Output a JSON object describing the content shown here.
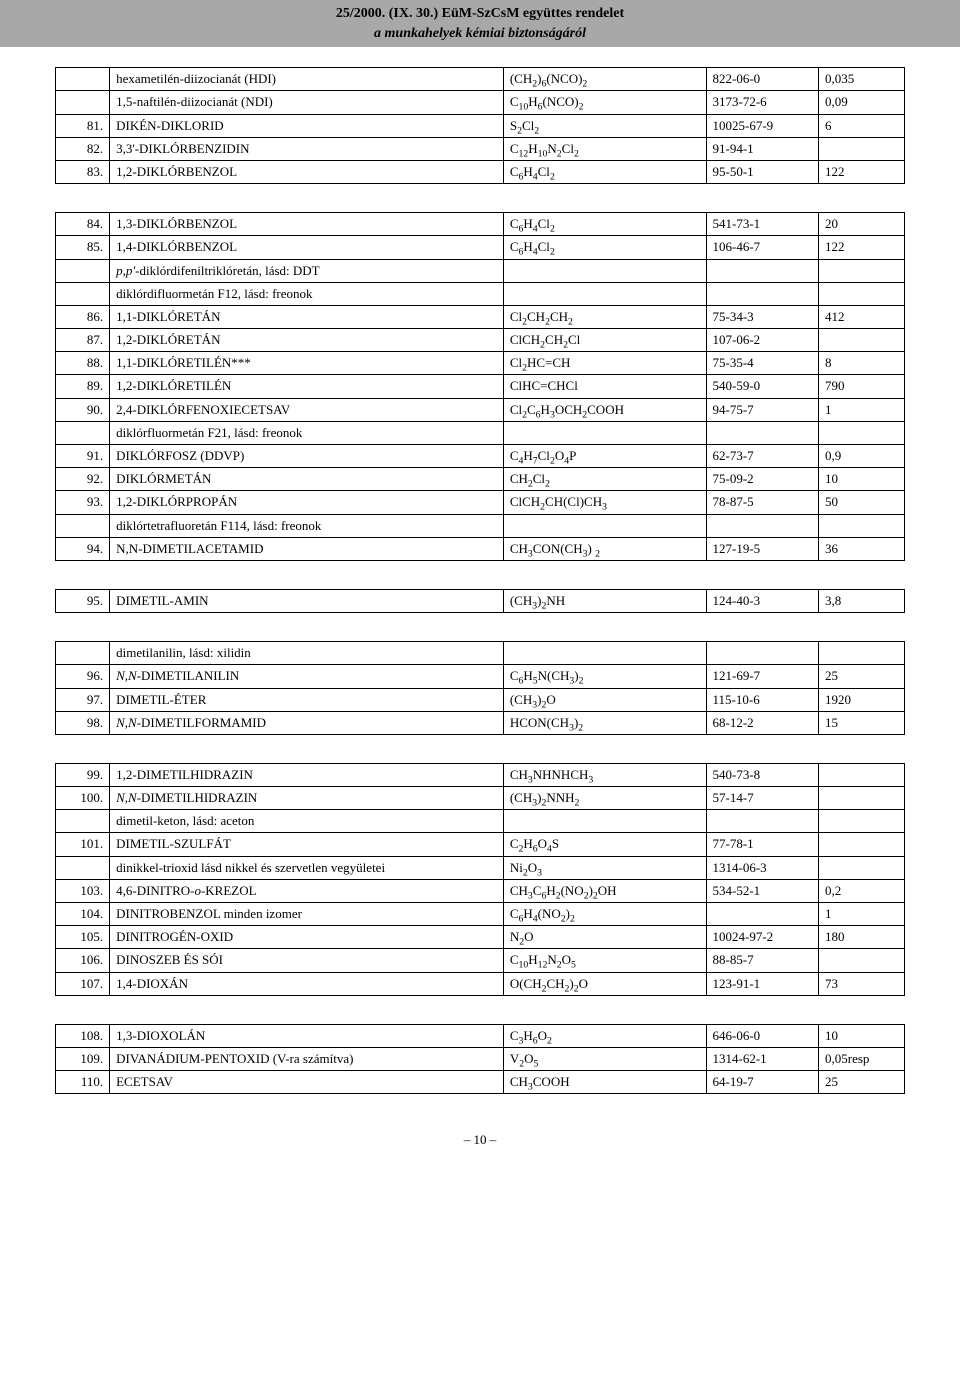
{
  "header": {
    "title_line1": "25/2000. (IX. 30.) EüM-SzCsM együttes rendelet",
    "title_line2": "a munkahelyek kémiai biztonságáról",
    "bg_color": "#a8a8a8",
    "text_color": "#000000"
  },
  "footer": {
    "page": "– 10 –"
  },
  "rows_group1": [
    {
      "num": "",
      "name": "hexametilén-diizocianát (HDI)",
      "formula": "(CH₂)₆(NCO)₂",
      "cas": "822-06-0",
      "val": "0,035"
    },
    {
      "num": "",
      "name": "1,5-naftilén-diizocianát (NDI)",
      "formula": "C₁₀H₆(NCO)₂",
      "cas": "3173-72-6",
      "val": "0,09"
    },
    {
      "num": "81.",
      "name": "DIKÉN-DIKLORID",
      "formula": "S₂Cl₂",
      "cas": "10025-67-9",
      "val": "6"
    },
    {
      "num": "82.",
      "name": "3,3'-DIKLÓRBENZIDIN",
      "formula": "C₁₂H₁₀N₂Cl₂",
      "cas": "91-94-1",
      "val": ""
    },
    {
      "num": "83.",
      "name": "1,2-DIKLÓRBENZOL",
      "formula": "C₆H₄Cl₂",
      "cas": "95-50-1",
      "val": "122"
    }
  ],
  "rows_group2": [
    {
      "num": "84.",
      "name": "1,3-DIKLÓRBENZOL",
      "formula": "C₆H₄Cl₂",
      "cas": "541-73-1",
      "val": "20"
    },
    {
      "num": "85.",
      "name": "1,4-DIKLÓRBENZOL",
      "formula": "C₆H₄Cl₂",
      "cas": "106-46-7",
      "val": "122"
    },
    {
      "num": "",
      "name_italic_prefix": "p,p'",
      "name_rest": "-diklórdifeniltriklóretán, lásd: DDT",
      "formula": "",
      "cas": "",
      "val": ""
    },
    {
      "num": "",
      "name": "diklórdifluormetán F12, lásd: freonok",
      "formula": "",
      "cas": "",
      "val": ""
    },
    {
      "num": "86.",
      "name": "1,1-DIKLÓRETÁN",
      "formula": "Cl₂CH₂CH₂",
      "cas": "75-34-3",
      "val": "412"
    },
    {
      "num": "87.",
      "name": "1,2-DIKLÓRETÁN",
      "formula": "ClCH₂CH₂Cl",
      "cas": "107-06-2",
      "val": ""
    },
    {
      "num": "88.",
      "name": "1,1-DIKLÓRETILÉN***",
      "formula": "Cl₂HC=CH",
      "cas": "75-35-4",
      "val": "8"
    },
    {
      "num": "89.",
      "name": "1,2-DIKLÓRETILÉN",
      "formula": "ClHC=CHCl",
      "cas": "540-59-0",
      "val": "790"
    },
    {
      "num": "90.",
      "name": "2,4-DIKLÓRFENOXIECETSAV",
      "formula": "Cl₂C₆H₃OCH₂COOH",
      "cas": "94-75-7",
      "val": "1"
    },
    {
      "num": "",
      "name": "diklórfluormetán F21, lásd: freonok",
      "formula": "",
      "cas": "",
      "val": ""
    },
    {
      "num": "91.",
      "name": "DIKLÓRFOSZ (DDVP)",
      "formula": "C₄H₇Cl₂O₄P",
      "cas": "62-73-7",
      "val": "0,9"
    },
    {
      "num": "92.",
      "name": "DIKLÓRMETÁN",
      "formula": "CH₂Cl₂",
      "cas": "75-09-2",
      "val": "10"
    },
    {
      "num": "93.",
      "name": "1,2-DIKLÓRPROPÁN",
      "formula": "ClCH₂CH(Cl)CH₃",
      "cas": "78-87-5",
      "val": "50"
    },
    {
      "num": "",
      "name": "diklórtetrafluoretán F114, lásd: freonok",
      "formula": "",
      "cas": "",
      "val": ""
    },
    {
      "num": "94.",
      "name": "N,N-DIMETILACETAMID",
      "formula": "CH₃CON(CH₃) ₂",
      "cas": "127-19-5",
      "val": "36"
    }
  ],
  "rows_group3": [
    {
      "num": "95.",
      "name": "DIMETIL-AMIN",
      "formula": "(CH₃)₂NH",
      "cas": "124-40-3",
      "val": "3,8"
    }
  ],
  "rows_group4": [
    {
      "num": "",
      "name": "dimetilanilin, lásd: xilidin",
      "formula": "",
      "cas": "",
      "val": ""
    },
    {
      "num": "96.",
      "name_italic_prefix": "N,N",
      "name_rest": "-DIMETILANILIN",
      "formula": "C₆H₅N(CH₃)₂",
      "cas": "121-69-7",
      "val": "25"
    },
    {
      "num": "97.",
      "name": "DIMETIL-ÉTER",
      "formula": "(CH₃)₂O",
      "cas": "115-10-6",
      "val": "1920"
    },
    {
      "num": "98.",
      "name_italic_prefix": "N,N",
      "name_rest": "-DIMETILFORMAMID",
      "formula": "HCON(CH₃)₂",
      "cas": "68-12-2",
      "val": "15"
    }
  ],
  "rows_group5": [
    {
      "num": "99.",
      "name": "1,2-DIMETILHIDRAZIN",
      "formula": "CH₃NHNHCH₃",
      "cas": "540-73-8",
      "val": ""
    },
    {
      "num": "100.",
      "name_italic_prefix": "N,N",
      "name_rest": "-DIMETILHIDRAZIN",
      "formula": "(CH₃)₂NNH₂",
      "cas": "57-14-7",
      "val": ""
    },
    {
      "num": "",
      "name": "dimetil-keton, lásd: aceton",
      "formula": "",
      "cas": "",
      "val": ""
    },
    {
      "num": "101.",
      "name": "DIMETIL-SZULFÁT",
      "formula": "C₂H₆O₄S",
      "cas": "77-78-1",
      "val": ""
    },
    {
      "num": "",
      "name": "dinikkel-trioxid lásd nikkel és szervetlen vegyületei",
      "formula": "Ni₂O₃",
      "cas": "1314-06-3",
      "val": ""
    },
    {
      "num": "103.",
      "name_prefix": "4,6-DINITRO-",
      "name_italic_mid": "o",
      "name_suffix": "-KREZOL",
      "formula": "CH₃C₆H₂(NO₂)₂OH",
      "cas": "534-52-1",
      "val": "0,2"
    },
    {
      "num": "104.",
      "name": "DINITROBENZOL minden izomer",
      "formula": "C₆H₄(NO₂)₂",
      "cas": "",
      "val": "1"
    },
    {
      "num": "105.",
      "name": "DINITROGÉN-OXID",
      "formula": "N₂O",
      "cas": "10024-97-2",
      "val": "180"
    },
    {
      "num": "106.",
      "name": "DINOSZEB ÉS SÓI",
      "formula": "C₁₀H₁₂N₂O₅",
      "cas": "88-85-7",
      "val": ""
    },
    {
      "num": "107.",
      "name": "1,4-DIOXÁN",
      "formula": "O(CH₂CH₂)₂O",
      "cas": "123-91-1",
      "val": "73"
    }
  ],
  "rows_group6": [
    {
      "num": "108.",
      "name": "1,3-DIOXOLÁN",
      "formula": "C₃H₆O₂",
      "cas": "646-06-0",
      "val": "10"
    },
    {
      "num": "109.",
      "name": "DIVANÁDIUM-PENTOXID (V-ra számítva)",
      "formula": "V₂O₅",
      "cas": "1314-62-1",
      "val": "0,05resp"
    },
    {
      "num": "110.",
      "name": "ECETSAV",
      "formula": "CH₃COOH",
      "cas": "64-19-7",
      "val": "25"
    }
  ]
}
